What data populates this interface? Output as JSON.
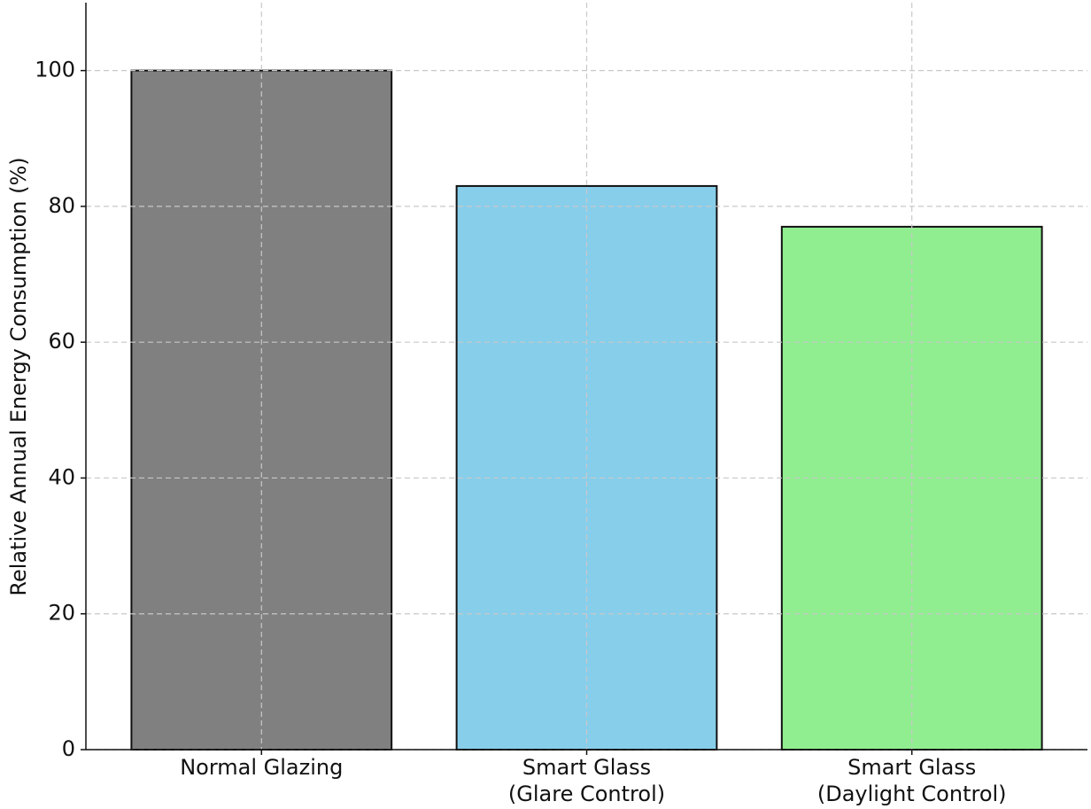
{
  "chart_data": {
    "type": "bar",
    "y_label": "Relative Annual Energy Consumption (%)",
    "categories": [
      "Normal Glazing",
      "Smart Glass\n(Glare Control)",
      "Smart Glass\n(Daylight Control)"
    ],
    "values": [
      100,
      83,
      77
    ],
    "colors": [
      "#808080",
      "#87ceeb",
      "#90ee90"
    ],
    "ylim": [
      0,
      110
    ],
    "yticks": [
      0,
      20,
      40,
      60,
      80,
      100
    ],
    "grid": true
  }
}
